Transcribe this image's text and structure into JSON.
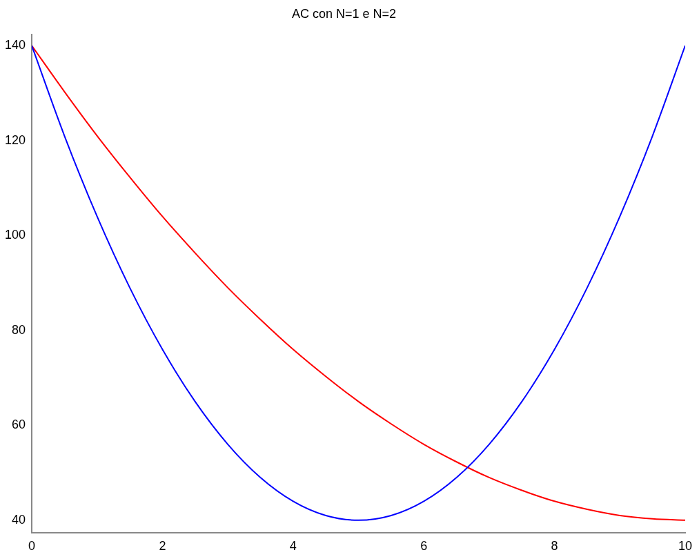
{
  "chart_data": {
    "type": "line",
    "title": "AC con N=1 e N=2",
    "x": [
      0,
      0.5,
      1,
      1.5,
      2,
      2.5,
      3,
      3.5,
      4,
      4.5,
      5,
      5.5,
      6,
      6.5,
      7,
      7.5,
      8,
      8.5,
      9,
      9.5,
      10
    ],
    "series": [
      {
        "color": "#0000ff",
        "values": [
          140,
          121,
          104,
          89,
          76,
          65,
          56,
          49,
          44,
          41,
          40,
          41,
          44,
          49,
          56,
          65,
          76,
          89,
          104,
          121,
          140
        ]
      },
      {
        "color": "#ff0000",
        "values": [
          140,
          130.3,
          121,
          112.3,
          104,
          96.3,
          89,
          82.3,
          76,
          70.3,
          65,
          60.3,
          56,
          52.3,
          49,
          46.3,
          44,
          42.3,
          41,
          40.3,
          40
        ]
      }
    ],
    "xlim": [
      0,
      10
    ],
    "xticks": [
      0,
      2,
      4,
      6,
      8,
      10
    ],
    "ylim": [
      37.3,
      142.4
    ],
    "yticks": [
      40,
      60,
      80,
      100,
      120,
      140
    ],
    "grid": false,
    "legend": false,
    "marker": "none",
    "line_style": "solid"
  }
}
